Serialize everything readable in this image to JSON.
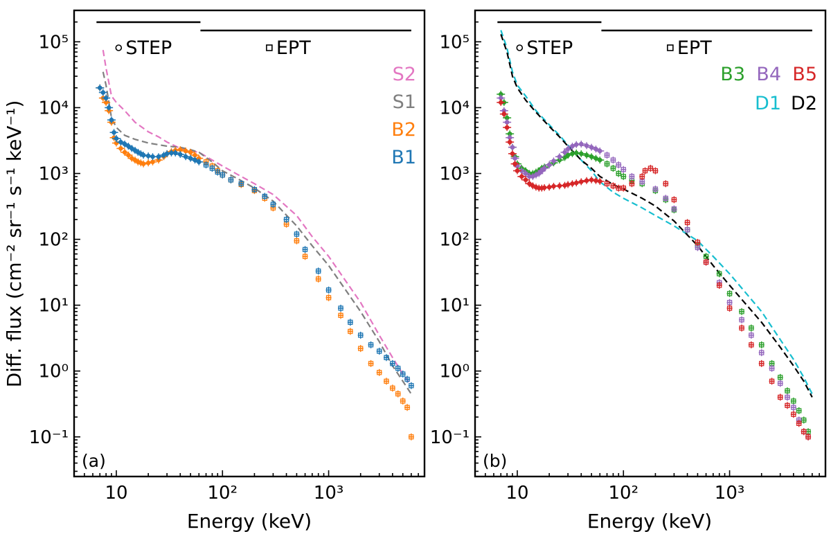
{
  "figure": {
    "ylabel": "Diff. flux (cm⁻² sr⁻¹ s⁻¹ keV⁻¹)",
    "xlabel_a": "Energy (keV)",
    "xlabel_b": "Energy (keV)"
  },
  "chart_data": [
    {
      "type": "scatter",
      "panel": "(a)",
      "xscale": "log",
      "yscale": "log",
      "xlim": [
        4.0,
        8000
      ],
      "ylim": [
        0.025,
        300000
      ],
      "xlabel": "Energy (keV)",
      "ylabel": "Diff. flux (cm⁻² sr⁻¹ s⁻¹ keV⁻¹)",
      "x_tick_labels": [
        "10",
        "10²",
        "10³"
      ],
      "y_tick_labels": [
        "10⁻¹",
        "10⁰",
        "10¹",
        "10²",
        "10³",
        "10⁴",
        "10⁵"
      ],
      "instruments": [
        {
          "name": "STEP",
          "marker": "circle",
          "range": [
            6.5,
            62
          ]
        },
        {
          "name": "EPT",
          "marker": "square",
          "range": [
            62,
            6000
          ]
        }
      ],
      "legend": [
        {
          "label": "S2",
          "color": "#e377c2"
        },
        {
          "label": "S1",
          "color": "#7f7f7f"
        },
        {
          "label": "B2",
          "color": "#ff7f0e"
        },
        {
          "label": "B1",
          "color": "#1f77b4"
        }
      ],
      "series": [
        {
          "name": "S2",
          "color": "#e377c2",
          "style": "dashed",
          "x": [
            7.5,
            8,
            9,
            10,
            12,
            15,
            20,
            25,
            30,
            40,
            50,
            60,
            80,
            100,
            150,
            200,
            300,
            500,
            700,
            1000,
            2000,
            3000,
            4000,
            5000,
            6000
          ],
          "y": [
            75000,
            40000,
            15000,
            12000,
            9000,
            6000,
            4300,
            3600,
            3000,
            2400,
            2200,
            2100,
            1600,
            1300,
            900,
            700,
            480,
            230,
            110,
            55,
            11,
            3.5,
            1.6,
            0.9,
            0.6
          ]
        },
        {
          "name": "S1",
          "color": "#7f7f7f",
          "style": "dashed",
          "x": [
            7.5,
            8,
            9,
            10,
            12,
            15,
            20,
            30,
            40,
            50,
            60,
            80,
            100,
            150,
            200,
            300,
            500,
            700,
            1000,
            2000,
            3000,
            4000,
            5000,
            6000
          ],
          "y": [
            35000,
            22000,
            7000,
            5000,
            3800,
            3300,
            2900,
            2600,
            2500,
            2300,
            2100,
            1500,
            1100,
            780,
            600,
            380,
            160,
            80,
            40,
            8,
            2.8,
            1.2,
            0.7,
            0.45
          ]
        },
        {
          "name": "B2",
          "color": "#ff7f0e",
          "style": "points",
          "x": [
            7,
            7.5,
            8,
            8.5,
            9,
            9.5,
            10,
            11,
            12,
            13,
            14,
            15,
            16,
            17,
            18,
            20,
            22,
            25,
            28,
            30,
            33,
            36,
            40,
            45,
            50,
            55,
            60,
            70,
            80,
            90,
            100,
            120,
            150,
            200,
            250,
            300,
            400,
            500,
            600,
            800,
            1000,
            1300,
            1600,
            2000,
            2500,
            3000,
            3500,
            4000,
            4500,
            5000,
            5500,
            6000
          ],
          "y": [
            20000,
            14000,
            12000,
            9000,
            6000,
            3500,
            2900,
            2400,
            2100,
            1900,
            1700,
            1600,
            1500,
            1450,
            1400,
            1450,
            1500,
            1600,
            1800,
            2000,
            2150,
            2250,
            2300,
            2200,
            2100,
            1900,
            1700,
            1500,
            1300,
            1100,
            950,
            800,
            680,
            550,
            420,
            300,
            170,
            95,
            55,
            25,
            13,
            7,
            4,
            2.2,
            1.3,
            0.95,
            0.7,
            0.55,
            0.45,
            0.35,
            0.28,
            0.1
          ]
        },
        {
          "name": "B1",
          "color": "#1f77b4",
          "style": "points",
          "x": [
            7,
            7.5,
            8,
            8.5,
            9,
            9.5,
            10,
            11,
            12,
            13,
            14,
            15,
            16,
            17,
            18,
            20,
            22,
            25,
            28,
            30,
            33,
            36,
            40,
            45,
            50,
            55,
            60,
            70,
            80,
            90,
            100,
            120,
            150,
            200,
            250,
            300,
            400,
            500,
            600,
            800,
            1000,
            1300,
            1600,
            2000,
            2500,
            3000,
            3500,
            4000,
            4500,
            5000,
            5500,
            6000
          ],
          "y": [
            20000,
            17000,
            14000,
            10000,
            6500,
            4200,
            3400,
            3000,
            2800,
            2600,
            2400,
            2250,
            2100,
            2000,
            1900,
            1850,
            1800,
            1800,
            1900,
            2000,
            2050,
            2050,
            1950,
            1800,
            1700,
            1600,
            1500,
            1350,
            1200,
            1050,
            950,
            800,
            700,
            570,
            450,
            340,
            200,
            120,
            70,
            33,
            17,
            9,
            5.5,
            3.5,
            2.5,
            2,
            1.6,
            1.3,
            1.1,
            0.9,
            0.75,
            0.6
          ]
        }
      ]
    },
    {
      "type": "scatter",
      "panel": "(b)",
      "xscale": "log",
      "yscale": "log",
      "xlim": [
        4.0,
        8000
      ],
      "ylim": [
        0.025,
        300000
      ],
      "xlabel": "Energy (keV)",
      "x_tick_labels": [
        "10",
        "10²",
        "10³"
      ],
      "y_tick_labels": [
        "10⁻¹",
        "10⁰",
        "10¹",
        "10²",
        "10³",
        "10⁴",
        "10⁵"
      ],
      "instruments": [
        {
          "name": "STEP",
          "marker": "circle",
          "range": [
            6.5,
            62
          ]
        },
        {
          "name": "EPT",
          "marker": "square",
          "range": [
            62,
            6000
          ]
        }
      ],
      "legend": [
        {
          "label": "B3",
          "color": "#2ca02c"
        },
        {
          "label": "B4",
          "color": "#9467bd"
        },
        {
          "label": "B5",
          "color": "#d62728"
        },
        {
          "label": "D1",
          "color": "#17becf"
        },
        {
          "label": "D2",
          "color": "#000000"
        }
      ],
      "series": [
        {
          "name": "D1",
          "color": "#17becf",
          "style": "dashed",
          "x": [
            7,
            8,
            9,
            10,
            12,
            15,
            20,
            25,
            30,
            40,
            50,
            60,
            80,
            100,
            150,
            200,
            300,
            500,
            700,
            1000,
            2000,
            3000,
            4000,
            5000,
            6000
          ],
          "y": [
            150000,
            80000,
            35000,
            22000,
            15000,
            9000,
            5500,
            3800,
            2700,
            1600,
            1100,
            750,
            520,
            420,
            300,
            230,
            160,
            95,
            55,
            30,
            8,
            3,
            1.5,
            0.8,
            0.45
          ]
        },
        {
          "name": "D2",
          "color": "#000000",
          "style": "dashed",
          "x": [
            7,
            8,
            9,
            10,
            12,
            15,
            20,
            25,
            30,
            40,
            50,
            60,
            80,
            100,
            150,
            200,
            300,
            500,
            700,
            1000,
            2000,
            3000,
            4000,
            5000,
            6000
          ],
          "y": [
            130000,
            70000,
            30000,
            20000,
            13000,
            8500,
            5200,
            3600,
            2600,
            1600,
            1200,
            900,
            680,
            580,
            420,
            320,
            190,
            80,
            40,
            20,
            5.5,
            2.3,
            1.2,
            0.7,
            0.4
          ]
        },
        {
          "name": "B3",
          "color": "#2ca02c",
          "style": "points",
          "x": [
            7,
            7.5,
            8,
            8.5,
            9,
            9.5,
            10,
            11,
            12,
            13,
            14,
            15,
            16,
            17,
            18,
            20,
            22,
            25,
            28,
            30,
            33,
            36,
            40,
            45,
            50,
            55,
            60,
            70,
            80,
            90,
            100,
            120,
            150,
            200,
            250,
            300,
            400,
            500,
            600,
            800,
            1000,
            1300,
            1600,
            2000,
            2500,
            3000,
            3500,
            4000,
            4500,
            5000,
            5500
          ],
          "y": [
            16000,
            12000,
            7000,
            4000,
            2500,
            1800,
            1400,
            1200,
            1100,
            1000,
            1000,
            1050,
            1100,
            1200,
            1250,
            1350,
            1450,
            1600,
            1750,
            1900,
            2000,
            2050,
            2000,
            1900,
            1800,
            1700,
            1600,
            1400,
            1200,
            1000,
            900,
            780,
            700,
            550,
            400,
            280,
            140,
            80,
            55,
            30,
            15,
            8,
            4.5,
            2.5,
            1.3,
            0.8,
            0.5,
            0.35,
            0.25,
            0.18,
            0.12
          ]
        },
        {
          "name": "B4",
          "color": "#9467bd",
          "style": "points",
          "x": [
            7,
            7.5,
            8,
            8.5,
            9,
            9.5,
            10,
            11,
            12,
            13,
            14,
            15,
            16,
            17,
            18,
            20,
            22,
            25,
            28,
            30,
            33,
            36,
            40,
            45,
            50,
            55,
            60,
            70,
            80,
            90,
            100,
            120,
            150,
            200,
            250,
            300,
            400,
            500,
            600,
            800,
            1000,
            1300,
            1600,
            2000,
            2500,
            3000,
            3500,
            4000,
            4500,
            5000,
            5500
          ],
          "y": [
            14000,
            9000,
            6000,
            3500,
            2500,
            1700,
            1300,
            1100,
            1000,
            900,
            900,
            950,
            1000,
            1100,
            1200,
            1350,
            1550,
            1800,
            2100,
            2350,
            2600,
            2750,
            2800,
            2650,
            2500,
            2350,
            2200,
            1900,
            1600,
            1350,
            1150,
            900,
            750,
            580,
            420,
            290,
            140,
            75,
            45,
            22,
            11,
            6,
            3.5,
            1.9,
            1.1,
            0.65,
            0.4,
            0.28,
            0.18,
            0.12,
            0.1
          ]
        },
        {
          "name": "B5",
          "color": "#d62728",
          "style": "points",
          "x": [
            7,
            7.5,
            8,
            8.5,
            9,
            9.5,
            10,
            11,
            12,
            13,
            14,
            15,
            16,
            17,
            18,
            20,
            22,
            25,
            28,
            30,
            33,
            36,
            40,
            45,
            50,
            55,
            60,
            70,
            80,
            90,
            100,
            120,
            150,
            160,
            180,
            200,
            250,
            300,
            400,
            500,
            600,
            800,
            1000,
            1300,
            1600,
            2000,
            2500,
            3000,
            3500,
            4000,
            4500,
            5000,
            5500
          ],
          "y": [
            12000,
            8000,
            5000,
            3000,
            2000,
            1400,
            1100,
            900,
            800,
            700,
            650,
            620,
            600,
            600,
            610,
            620,
            640,
            650,
            660,
            680,
            700,
            720,
            750,
            780,
            800,
            780,
            760,
            700,
            650,
            600,
            600,
            700,
            900,
            1100,
            1200,
            1100,
            700,
            400,
            180,
            90,
            45,
            20,
            9,
            4.5,
            2.5,
            1.3,
            0.7,
            0.4,
            0.3,
            0.22,
            0.16,
            0.12,
            0.1
          ]
        }
      ]
    }
  ]
}
